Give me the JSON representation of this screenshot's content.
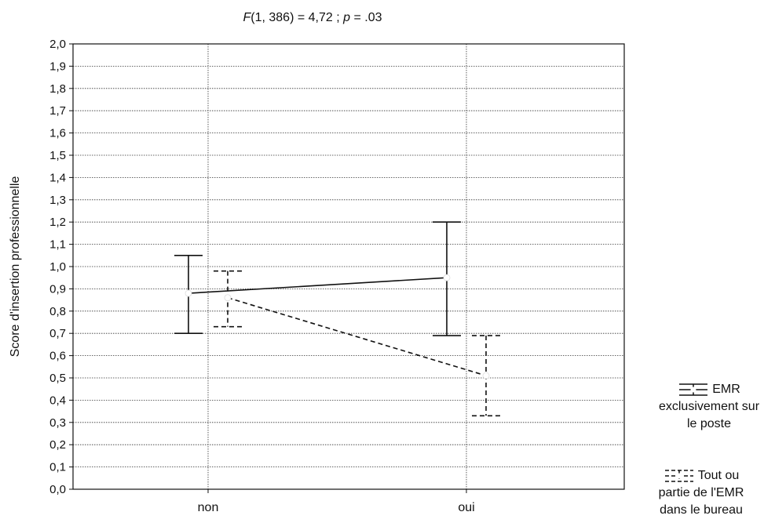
{
  "chart_data": {
    "type": "line",
    "title": "F(1, 386) = 4,72 ;  p = .03",
    "title_parts": {
      "f_letter": "F",
      "f_rest": "(1, 386) = 4,72 ;  ",
      "p_letter": "p",
      "p_rest": " = .03"
    },
    "xlabel": "",
    "ylabel": "Score d'insertion professionnelle",
    "categories": [
      "non",
      "oui"
    ],
    "ylim": [
      0,
      2
    ],
    "y_ticks": [
      "0,0",
      "0,1",
      "0,2",
      "0,3",
      "0,4",
      "0,5",
      "0,6",
      "0,7",
      "0,8",
      "0,9",
      "1,0",
      "1,1",
      "1,2",
      "1,3",
      "1,4",
      "1,5",
      "1,6",
      "1,7",
      "1,8",
      "1,9",
      "2,0"
    ],
    "grid": true,
    "legend_position": "right",
    "series": [
      {
        "name": "EMR exclusivement sur le poste",
        "style": "solid",
        "values": [
          0.88,
          0.95
        ],
        "ci_low": [
          0.7,
          0.69
        ],
        "ci_high": [
          1.05,
          1.2
        ]
      },
      {
        "name": "Tout ou partie de l'EMR dans le bureau",
        "style": "dashed",
        "values": [
          0.86,
          0.51
        ],
        "ci_low": [
          0.73,
          0.33
        ],
        "ci_high": [
          0.98,
          0.69
        ]
      }
    ]
  },
  "legend": {
    "item1_lines": [
      "EMR",
      "exclusivement sur",
      "le poste"
    ],
    "item2_lines": [
      "Tout ou",
      "partie de l'EMR",
      "dans le bureau"
    ]
  }
}
